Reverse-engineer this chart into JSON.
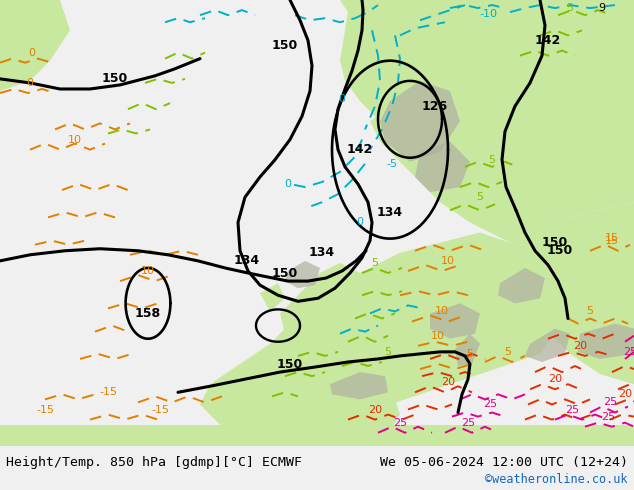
{
  "title_left": "Height/Temp. 850 hPa [gdmp][°C] ECMWF",
  "title_right": "We 05-06-2024 12:00 UTC (12+24)",
  "watermark": "©weatheronline.co.uk",
  "bg_ocean": "#e8e8e8",
  "bg_land_light": "#c8e8a0",
  "bg_land_gray": "#a8a8a8",
  "bg_bar": "#f0f0f0",
  "bottom_text_color": "#000000",
  "watermark_color": "#1565c0",
  "fig_width": 6.34,
  "fig_height": 4.9,
  "dpi": 100,
  "black_lw": 2.2,
  "color_lw": 1.4,
  "black_color": "#000000",
  "cyan_color": "#00b0c8",
  "orange_color": "#e08000",
  "lime_color": "#80c000",
  "red_color": "#e03000",
  "magenta_color": "#e0008c"
}
